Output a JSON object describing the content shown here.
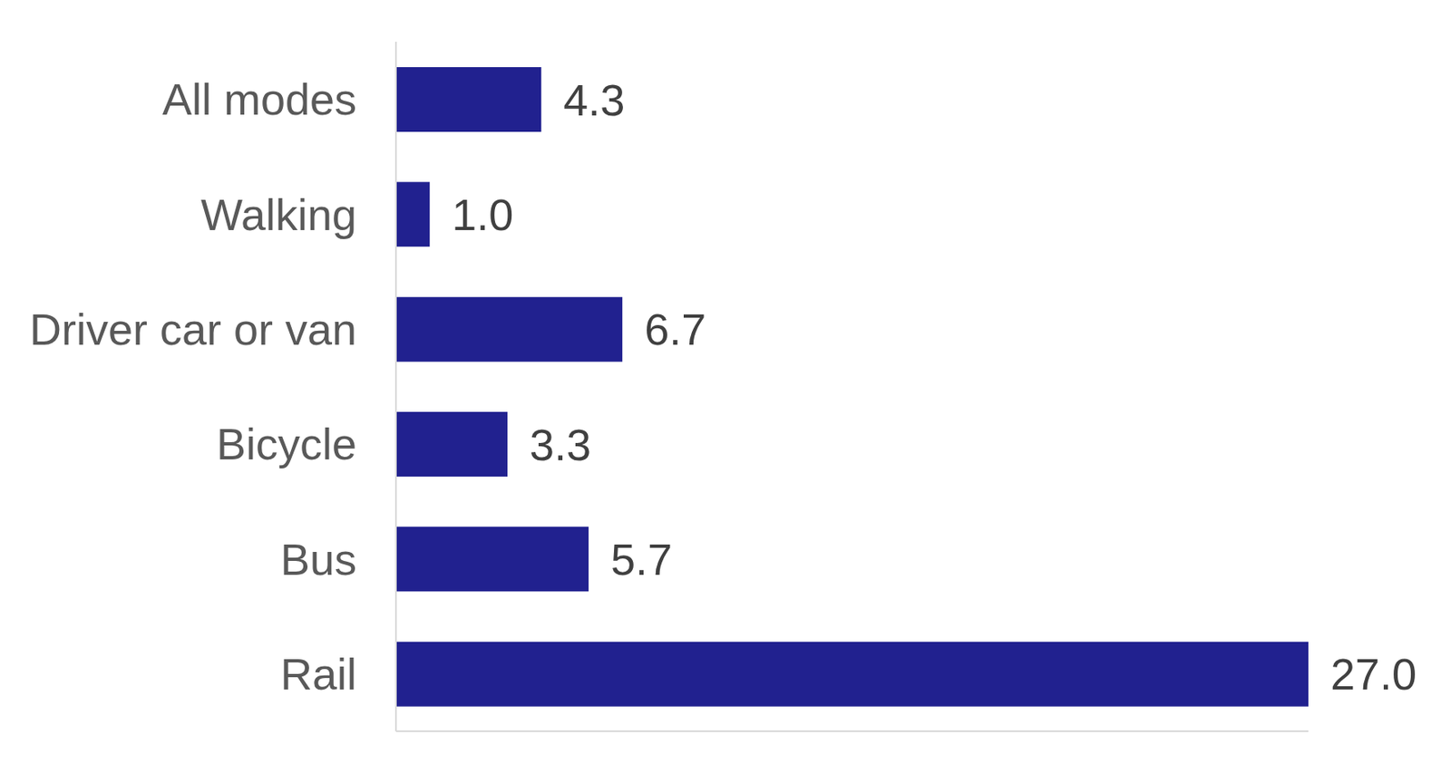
{
  "chart_data": {
    "type": "bar",
    "orientation": "horizontal",
    "categories": [
      "All modes",
      "Walking",
      "Driver car or van",
      "Bicycle",
      "Bus",
      "Rail"
    ],
    "values": [
      4.3,
      1.0,
      6.7,
      3.3,
      5.7,
      27.0
    ],
    "value_labels": [
      "4.3",
      "1.0",
      "6.7",
      "3.3",
      "5.7",
      "27.0"
    ],
    "color": "#21218f",
    "xlim": [
      0,
      27
    ],
    "data_labels": true,
    "tick_labels": "y",
    "grid": false
  }
}
